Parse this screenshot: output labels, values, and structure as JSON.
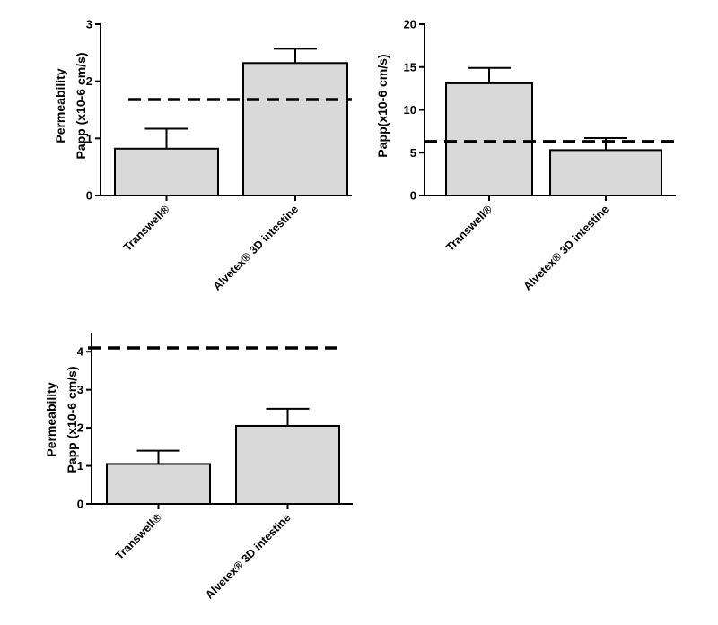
{
  "chart_data": [
    {
      "type": "bar",
      "categories": [
        "Transwell®",
        "Alvetex® 3D intestine"
      ],
      "values": [
        0.82,
        2.32
      ],
      "error_bars": [
        0.35,
        0.25
      ],
      "reference_line": 1.68,
      "ylabel_lines": [
        "Permeability",
        "Papp (x10-6 cm/s)"
      ],
      "ylim": [
        0,
        3
      ],
      "yticks": [
        0,
        1,
        2,
        3
      ],
      "grid": false,
      "bar_color": "#d9d9d9",
      "line_color": "#000000"
    },
    {
      "type": "bar",
      "categories": [
        "Transwell®",
        "Alvetex® 3D intestine"
      ],
      "values": [
        13.1,
        5.3
      ],
      "error_bars": [
        1.8,
        1.4
      ],
      "reference_line": 6.3,
      "ylabel_lines": [
        "Papp(x10-6 cm/s)"
      ],
      "ylim": [
        0,
        20
      ],
      "yticks": [
        0,
        5,
        10,
        15,
        20
      ],
      "grid": false,
      "bar_color": "#d9d9d9",
      "line_color": "#000000"
    },
    {
      "type": "bar",
      "categories": [
        "Transwell®",
        "Alvetex® 3D intestine"
      ],
      "values": [
        1.05,
        2.05
      ],
      "error_bars": [
        0.35,
        0.45
      ],
      "reference_line": 4.1,
      "ylabel_lines": [
        "Permeability",
        "Papp (x10-6 cm/s)"
      ],
      "ylim": [
        0,
        4.5
      ],
      "yticks": [
        0,
        1,
        2,
        3,
        4
      ],
      "grid": false,
      "bar_color": "#d9d9d9",
      "line_color": "#000000"
    }
  ]
}
